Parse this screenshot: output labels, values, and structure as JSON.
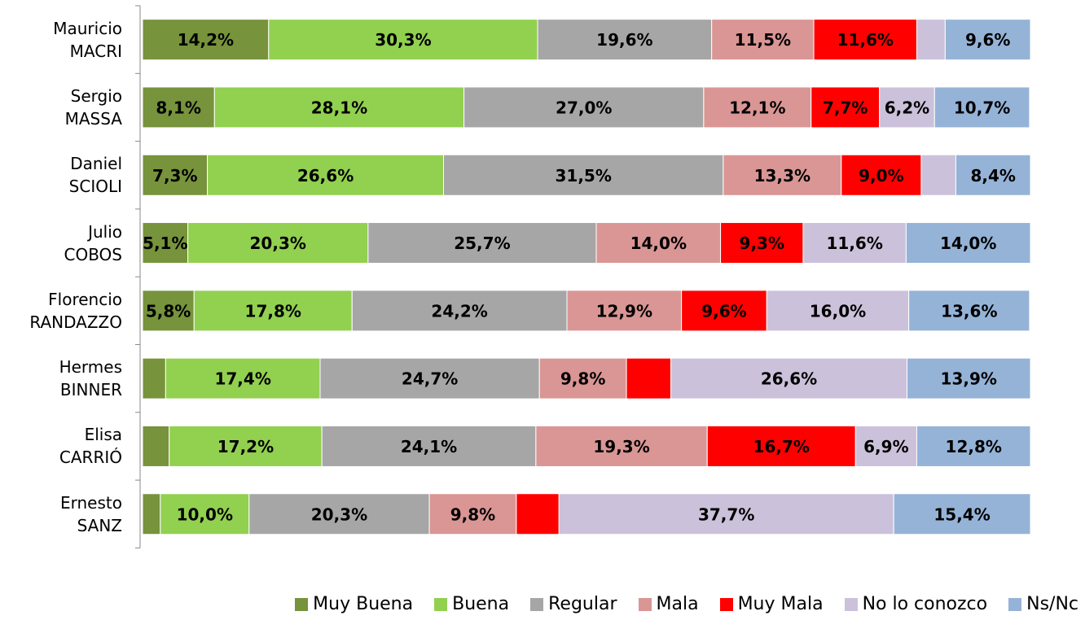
{
  "chart_data": {
    "type": "stacked-bar-horizontal",
    "categories": [
      "Mauricio\nMACRI",
      "Sergio\nMASSA",
      "Daniel\nSCIOLI",
      "Julio\nCOBOS",
      "Florencio\nRANDAZZO",
      "Hermes\nBINNER",
      "Elisa\nCARRIÓ",
      "Ernesto\nSANZ"
    ],
    "xlim": [
      0,
      100
    ],
    "legend": "bottom",
    "series": [
      {
        "name": "Muy Buena",
        "color": "#77933c",
        "values": [
          14.2,
          8.1,
          7.3,
          5.1,
          5.8,
          2.6,
          3.0,
          2.0
        ],
        "value_labels": [
          "14,2%",
          "8,1%",
          "7,3%",
          "5,1%",
          "5,8%",
          null,
          null,
          null
        ]
      },
      {
        "name": "Buena",
        "color": "#92d050",
        "values": [
          30.3,
          28.1,
          26.6,
          20.3,
          17.8,
          17.4,
          17.2,
          10.0
        ],
        "value_labels": [
          "30,3%",
          "28,1%",
          "26,6%",
          "20,3%",
          "17,8%",
          "17,4%",
          "17,2%",
          "10,0%"
        ]
      },
      {
        "name": "Regular",
        "color": "#a6a6a6",
        "values": [
          19.6,
          27.0,
          31.5,
          25.7,
          24.2,
          24.7,
          24.1,
          20.3
        ],
        "value_labels": [
          "19,6%",
          "27,0%",
          "31,5%",
          "25,7%",
          "24,2%",
          "24,7%",
          "24,1%",
          "20,3%"
        ]
      },
      {
        "name": "Mala",
        "color": "#d99694",
        "values": [
          11.5,
          12.1,
          13.3,
          14.0,
          12.9,
          9.8,
          19.3,
          9.8
        ],
        "value_labels": [
          "11,5%",
          "12,1%",
          "13,3%",
          "14,0%",
          "12,9%",
          "9,8%",
          "19,3%",
          "9,8%"
        ]
      },
      {
        "name": "Muy Mala",
        "color": "#ff0000",
        "values": [
          11.6,
          7.7,
          9.0,
          9.3,
          9.6,
          5.0,
          16.7,
          4.8
        ],
        "value_labels": [
          "11,6%",
          "7,7%",
          "9,0%",
          "9,3%",
          "9,6%",
          null,
          "16,7%",
          null
        ]
      },
      {
        "name": "No lo conozco",
        "color": "#ccc1da",
        "values": [
          3.2,
          6.2,
          3.9,
          11.6,
          16.0,
          26.6,
          6.9,
          37.7
        ],
        "value_labels": [
          null,
          "6,2%",
          null,
          "11,6%",
          "16,0%",
          "26,6%",
          "6,9%",
          "37,7%"
        ]
      },
      {
        "name": "Ns/Nc",
        "color": "#95b3d7",
        "values": [
          9.6,
          10.7,
          8.4,
          14.0,
          13.6,
          13.9,
          12.8,
          15.4
        ],
        "value_labels": [
          "9,6%",
          "10,7%",
          "8,4%",
          "14,0%",
          "13,6%",
          "13,9%",
          "12,8%",
          "15,4%"
        ]
      }
    ]
  }
}
